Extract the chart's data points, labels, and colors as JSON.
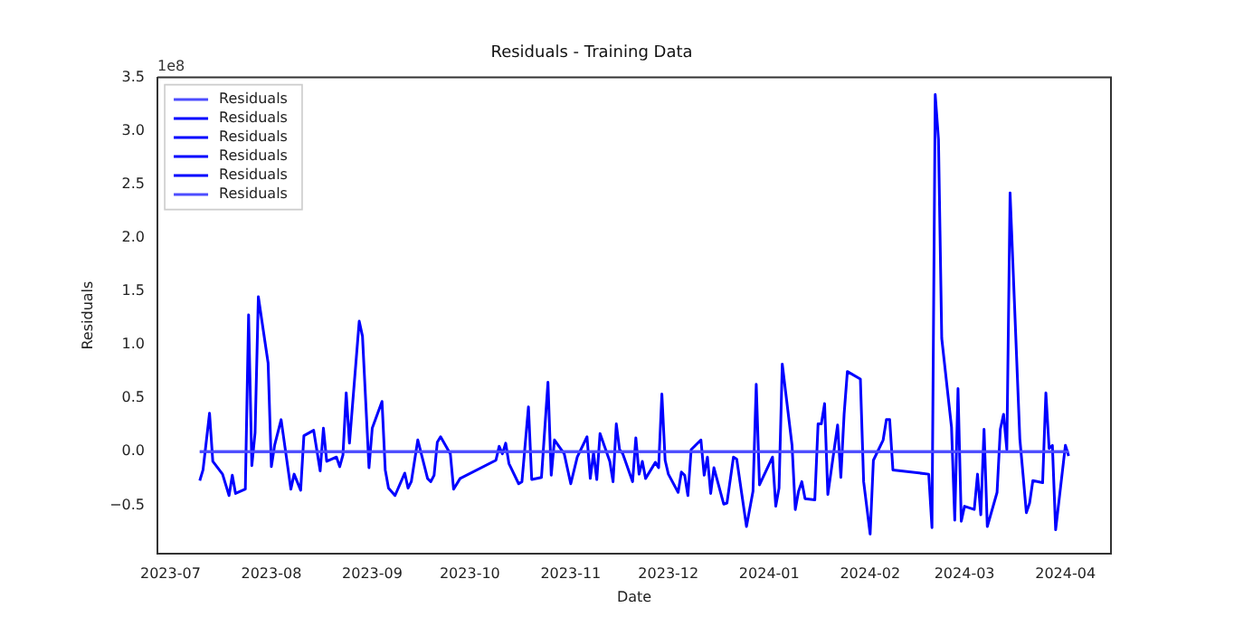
{
  "chart_data": {
    "type": "line",
    "title": "Residuals - Training Data",
    "xlabel": "Date",
    "ylabel": "Residuals",
    "annotations": [
      "1e8"
    ],
    "xlim": [
      "2023-06-27",
      "2024-04-15"
    ],
    "xticks": [
      {
        "value": "2023-07-01",
        "label": "2023-07"
      },
      {
        "value": "2023-08-01",
        "label": "2023-08"
      },
      {
        "value": "2023-09-01",
        "label": "2023-09"
      },
      {
        "value": "2023-10-01",
        "label": "2023-10"
      },
      {
        "value": "2023-11-01",
        "label": "2023-11"
      },
      {
        "value": "2023-12-01",
        "label": "2023-12"
      },
      {
        "value": "2024-01-01",
        "label": "2024-01"
      },
      {
        "value": "2024-02-01",
        "label": "2024-02"
      },
      {
        "value": "2024-03-01",
        "label": "2024-03"
      },
      {
        "value": "2024-04-01",
        "label": "2024-04"
      }
    ],
    "ylim": [
      -0.95,
      3.5
    ],
    "yticks": [
      {
        "value": -0.5,
        "label": "−0.5"
      },
      {
        "value": 0,
        "label": "0.0"
      },
      {
        "value": 0.5,
        "label": "0.5"
      },
      {
        "value": 1,
        "label": "1.0"
      },
      {
        "value": 1.5,
        "label": "1.5"
      },
      {
        "value": 2,
        "label": "2.0"
      },
      {
        "value": 2.5,
        "label": "2.5"
      },
      {
        "value": 3,
        "label": "3.0"
      },
      {
        "value": 3.5,
        "label": "3.5"
      }
    ],
    "legend": "top left",
    "grid": false,
    "marker": "none",
    "line_style": "solid",
    "series": [
      {
        "name": "Residuals",
        "color": "#4d4dff",
        "x": [
          "2023-07-10",
          "2024-04-02"
        ],
        "values": [
          0,
          0
        ]
      },
      {
        "name": "Residuals",
        "color": "#0000ff",
        "x": [
          "2023-07-10",
          "2023-07-11",
          "2023-07-13",
          "2023-07-14",
          "2023-07-17",
          "2023-07-19",
          "2023-07-20",
          "2023-07-21",
          "2023-07-24",
          "2023-07-25",
          "2023-07-26",
          "2023-07-27",
          "2023-07-28",
          "2023-07-31",
          "2023-08-01",
          "2023-08-02",
          "2023-08-04",
          "2023-08-07",
          "2023-08-08",
          "2023-08-10",
          "2023-08-11",
          "2023-08-14",
          "2023-08-16",
          "2023-08-17",
          "2023-08-18",
          "2023-08-21",
          "2023-08-22",
          "2023-08-23",
          "2023-08-24",
          "2023-08-25",
          "2023-08-28",
          "2023-08-29",
          "2023-08-31",
          "2023-09-01",
          "2023-09-04",
          "2023-09-05",
          "2023-09-06",
          "2023-09-08",
          "2023-09-11",
          "2023-09-12",
          "2023-09-13",
          "2023-09-15",
          "2023-09-18",
          "2023-09-19",
          "2023-09-20",
          "2023-09-21",
          "2023-09-22",
          "2023-09-25",
          "2023-09-26",
          "2023-09-28",
          "2023-10-09",
          "2023-10-10",
          "2023-10-11",
          "2023-10-12",
          "2023-10-13",
          "2023-10-16",
          "2023-10-17",
          "2023-10-19",
          "2023-10-20",
          "2023-10-23",
          "2023-10-25",
          "2023-10-26",
          "2023-10-27",
          "2023-10-30",
          "2023-11-01",
          "2023-11-03",
          "2023-11-06",
          "2023-11-07",
          "2023-11-08",
          "2023-11-09",
          "2023-11-10",
          "2023-11-13",
          "2023-11-14",
          "2023-11-15",
          "2023-11-16",
          "2023-11-17",
          "2023-11-20",
          "2023-11-21",
          "2023-11-22",
          "2023-11-23",
          "2023-11-24",
          "2023-11-27",
          "2023-11-28",
          "2023-11-29",
          "2023-11-30",
          "2023-12-01",
          "2023-12-04",
          "2023-12-05",
          "2023-12-06",
          "2023-12-07",
          "2023-12-08",
          "2023-12-11",
          "2023-12-12",
          "2023-12-13",
          "2023-12-14",
          "2023-12-15",
          "2023-12-18",
          "2023-12-19",
          "2023-12-21",
          "2023-12-22",
          "2023-12-25",
          "2023-12-27",
          "2023-12-28",
          "2023-12-29",
          "2024-01-02",
          "2024-01-03",
          "2024-01-04",
          "2024-01-05",
          "2024-01-08",
          "2024-01-09",
          "2024-01-10",
          "2024-01-11",
          "2024-01-12",
          "2024-01-15",
          "2024-01-16",
          "2024-01-17",
          "2024-01-18",
          "2024-01-19",
          "2024-01-22",
          "2024-01-23",
          "2024-01-24",
          "2024-01-25",
          "2024-01-29",
          "2024-01-30",
          "2024-02-01",
          "2024-02-02",
          "2024-02-05",
          "2024-02-06",
          "2024-02-07",
          "2024-02-08",
          "2024-02-19",
          "2024-02-20",
          "2024-02-21",
          "2024-02-22",
          "2024-02-23",
          "2024-02-26",
          "2024-02-27",
          "2024-02-28",
          "2024-02-29",
          "2024-03-01",
          "2024-03-04",
          "2024-03-05",
          "2024-03-06",
          "2024-03-07",
          "2024-03-08",
          "2024-03-11",
          "2024-03-12",
          "2024-03-13",
          "2024-03-14",
          "2024-03-15",
          "2024-03-18",
          "2024-03-19",
          "2024-03-20",
          "2024-03-21",
          "2024-03-22",
          "2024-03-25",
          "2024-03-26",
          "2024-03-27",
          "2024-03-28",
          "2024-03-29",
          "2024-04-01",
          "2024-04-02"
        ],
        "values": [
          -0.27,
          -0.17,
          0.36,
          -0.09,
          -0.21,
          -0.41,
          -0.22,
          -0.39,
          -0.35,
          1.28,
          -0.13,
          0.18,
          1.45,
          0.83,
          -0.14,
          0.06,
          0.3,
          -0.35,
          -0.21,
          -0.36,
          0.15,
          0.2,
          -0.18,
          0.22,
          -0.09,
          -0.05,
          -0.14,
          -0.03,
          0.55,
          0.08,
          1.22,
          1.08,
          -0.15,
          0.22,
          0.47,
          -0.17,
          -0.34,
          -0.41,
          -0.2,
          -0.34,
          -0.28,
          0.11,
          -0.25,
          -0.28,
          -0.22,
          0.09,
          0.14,
          -0.02,
          -0.35,
          -0.25,
          -0.08,
          0.05,
          -0.02,
          0.08,
          -0.11,
          -0.3,
          -0.28,
          0.42,
          -0.26,
          -0.24,
          0.65,
          -0.22,
          0.11,
          -0.02,
          -0.3,
          -0.05,
          0.14,
          -0.25,
          -0.01,
          -0.26,
          0.17,
          -0.09,
          -0.28,
          0.26,
          0.02,
          -0.02,
          -0.28,
          0.13,
          -0.21,
          -0.09,
          -0.25,
          -0.1,
          -0.15,
          0.54,
          -0.08,
          -0.21,
          -0.38,
          -0.19,
          -0.22,
          -0.41,
          0.02,
          0.11,
          -0.22,
          -0.05,
          -0.39,
          -0.15,
          -0.49,
          -0.48,
          -0.05,
          -0.07,
          -0.7,
          -0.37,
          0.63,
          -0.31,
          -0.05,
          -0.51,
          -0.34,
          0.82,
          0.06,
          -0.54,
          -0.37,
          -0.28,
          -0.44,
          -0.45,
          0.26,
          0.26,
          0.45,
          -0.4,
          0.25,
          -0.24,
          0.35,
          0.75,
          0.68,
          -0.28,
          -0.77,
          -0.08,
          0.11,
          0.3,
          0.3,
          -0.17,
          -0.21,
          -0.71,
          3.34,
          2.92,
          1.06,
          0.23,
          -0.64,
          0.59,
          -0.65,
          -0.51,
          -0.54,
          -0.21,
          -0.59,
          0.21,
          -0.7,
          -0.38,
          0.21,
          0.35,
          0.02,
          2.42,
          0.12,
          -0.22,
          -0.57,
          -0.48,
          -0.27,
          -0.29,
          0.55,
          0.03,
          0.06,
          -0.73,
          0.06,
          -0.04
        ]
      },
      {
        "name": "Residuals",
        "color": "#0000ff"
      },
      {
        "name": "Residuals",
        "color": "#0000ff"
      },
      {
        "name": "Residuals",
        "color": "#0000ff"
      },
      {
        "name": "Residuals",
        "color": "#4d4dff",
        "x": [
          "2023-07-10",
          "2024-04-02"
        ],
        "values": [
          0,
          0
        ]
      }
    ]
  }
}
